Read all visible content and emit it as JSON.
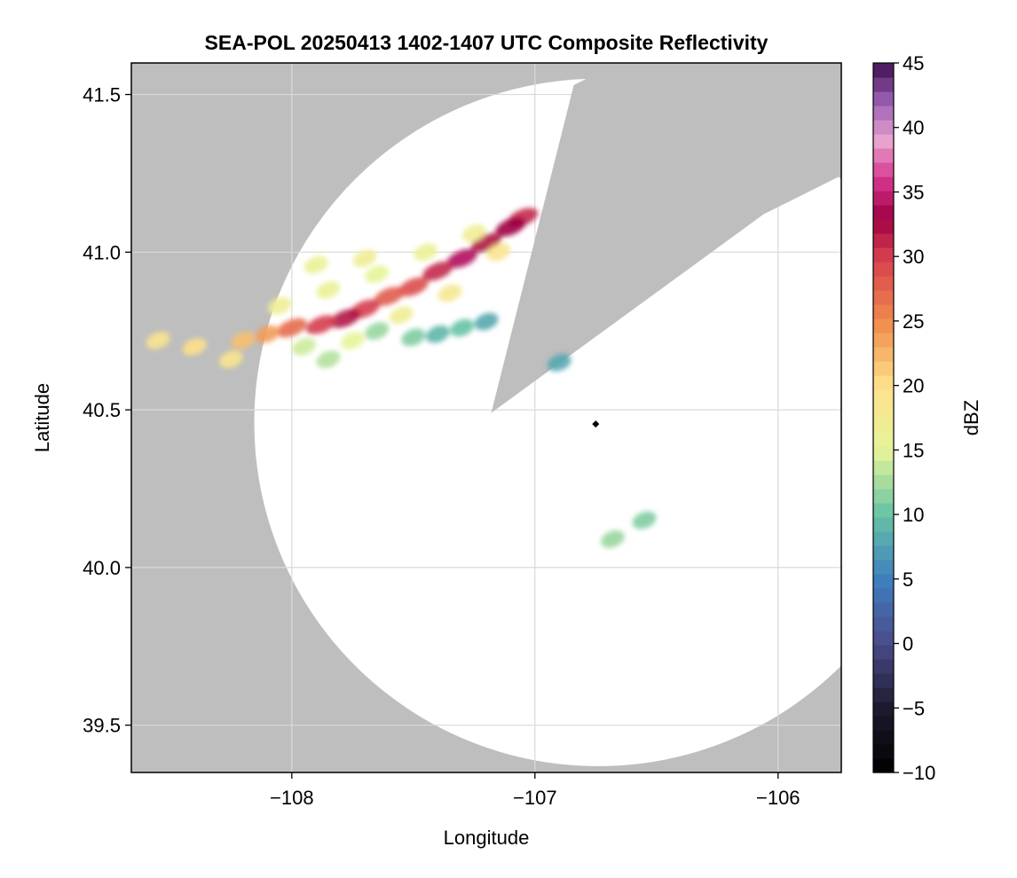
{
  "chart_data": {
    "type": "heatmap",
    "title": "SEA-POL 20250413 1402-1407 UTC Composite Reflectivity",
    "xlabel": "Longitude",
    "ylabel": "Latitude",
    "xlim": [
      -108.66,
      -105.74
    ],
    "ylim": [
      39.35,
      41.6
    ],
    "x_ticks": [
      -108,
      -107,
      -106
    ],
    "x_tick_labels": [
      "−108",
      "−107",
      "−106"
    ],
    "y_ticks": [
      39.5,
      40.0,
      40.5,
      41.0,
      41.5
    ],
    "y_tick_labels": [
      "39.5",
      "40.0",
      "40.5",
      "41.0",
      "41.5"
    ],
    "grid": true,
    "colors": {
      "missing_background": "#bebebe",
      "coverage_area": "#ffffff",
      "gridline": "#d9d9d9"
    },
    "radar": {
      "center_lon": -106.74,
      "center_lat": 40.46,
      "range_deg_lat": 1.09,
      "blocked_sector": {
        "apex_lon": -107.18,
        "apex_lat": 40.49,
        "edge_1": [
          -106.84,
          41.53
        ],
        "edge_2": [
          -106.06,
          41.12
        ]
      }
    },
    "colorbar": {
      "label": "dBZ",
      "vmin": -10,
      "vmax": 45,
      "ticks": [
        -10,
        -5,
        0,
        5,
        10,
        15,
        20,
        25,
        30,
        35,
        40,
        45
      ],
      "tick_labels": [
        "−10",
        "−5",
        "0",
        "5",
        "10",
        "15",
        "20",
        "25",
        "30",
        "35",
        "40",
        "45"
      ],
      "levels": 50,
      "colormap_stops": [
        {
          "v": -10,
          "c": "#000000"
        },
        {
          "v": -5,
          "c": "#1c1a2e"
        },
        {
          "v": 0,
          "c": "#4a4a8a"
        },
        {
          "v": 5,
          "c": "#3f7fbf"
        },
        {
          "v": 10,
          "c": "#66c2a5"
        },
        {
          "v": 15,
          "c": "#e6f598"
        },
        {
          "v": 20,
          "c": "#fee08b"
        },
        {
          "v": 25,
          "c": "#f08a4b"
        },
        {
          "v": 30,
          "c": "#d53e4f"
        },
        {
          "v": 33,
          "c": "#9e0142"
        },
        {
          "v": 36,
          "c": "#d6368f"
        },
        {
          "v": 39,
          "c": "#e9a3cf"
        },
        {
          "v": 42,
          "c": "#9b5fb4"
        },
        {
          "v": 45,
          "c": "#3f0f4f"
        }
      ]
    },
    "reflectivity_cells": [
      {
        "lon": -107.05,
        "lat": 41.11,
        "dbz": 31
      },
      {
        "lon": -107.1,
        "lat": 41.08,
        "dbz": 33
      },
      {
        "lon": -107.2,
        "lat": 41.03,
        "dbz": 32
      },
      {
        "lon": -107.3,
        "lat": 40.98,
        "dbz": 34
      },
      {
        "lon": -107.4,
        "lat": 40.94,
        "dbz": 31
      },
      {
        "lon": -107.5,
        "lat": 40.89,
        "dbz": 29
      },
      {
        "lon": -107.6,
        "lat": 40.86,
        "dbz": 28
      },
      {
        "lon": -107.7,
        "lat": 40.82,
        "dbz": 30
      },
      {
        "lon": -107.78,
        "lat": 40.79,
        "dbz": 32
      },
      {
        "lon": -107.88,
        "lat": 40.77,
        "dbz": 30
      },
      {
        "lon": -108.0,
        "lat": 40.76,
        "dbz": 27
      },
      {
        "lon": -108.1,
        "lat": 40.74,
        "dbz": 24
      },
      {
        "lon": -108.2,
        "lat": 40.72,
        "dbz": 22
      },
      {
        "lon": -107.15,
        "lat": 41.0,
        "dbz": 19
      },
      {
        "lon": -107.25,
        "lat": 41.06,
        "dbz": 17
      },
      {
        "lon": -107.45,
        "lat": 41.0,
        "dbz": 16
      },
      {
        "lon": -107.65,
        "lat": 40.93,
        "dbz": 15
      },
      {
        "lon": -107.85,
        "lat": 40.88,
        "dbz": 16
      },
      {
        "lon": -108.05,
        "lat": 40.83,
        "dbz": 17
      },
      {
        "lon": -108.25,
        "lat": 40.66,
        "dbz": 19
      },
      {
        "lon": -107.35,
        "lat": 40.87,
        "dbz": 18
      },
      {
        "lon": -107.55,
        "lat": 40.8,
        "dbz": 17
      },
      {
        "lon": -107.75,
        "lat": 40.72,
        "dbz": 15
      },
      {
        "lon": -107.95,
        "lat": 40.7,
        "dbz": 14
      },
      {
        "lon": -107.3,
        "lat": 40.76,
        "dbz": 10
      },
      {
        "lon": -107.4,
        "lat": 40.74,
        "dbz": 9
      },
      {
        "lon": -107.2,
        "lat": 40.78,
        "dbz": 8
      },
      {
        "lon": -107.5,
        "lat": 40.73,
        "dbz": 11
      },
      {
        "lon": -107.65,
        "lat": 40.75,
        "dbz": 12
      },
      {
        "lon": -107.85,
        "lat": 40.66,
        "dbz": 13
      },
      {
        "lon": -108.4,
        "lat": 40.7,
        "dbz": 20
      },
      {
        "lon": -108.55,
        "lat": 40.72,
        "dbz": 19
      },
      {
        "lon": -107.7,
        "lat": 40.98,
        "dbz": 17
      },
      {
        "lon": -107.9,
        "lat": 40.96,
        "dbz": 16
      },
      {
        "lon": -106.68,
        "lat": 40.09,
        "dbz": 12
      },
      {
        "lon": -106.55,
        "lat": 40.15,
        "dbz": 11
      },
      {
        "lon": -106.9,
        "lat": 40.65,
        "dbz": 8
      }
    ],
    "markers": [
      {
        "lon": -106.75,
        "lat": 40.455,
        "shape": "diamond",
        "color": "#000000"
      }
    ]
  }
}
